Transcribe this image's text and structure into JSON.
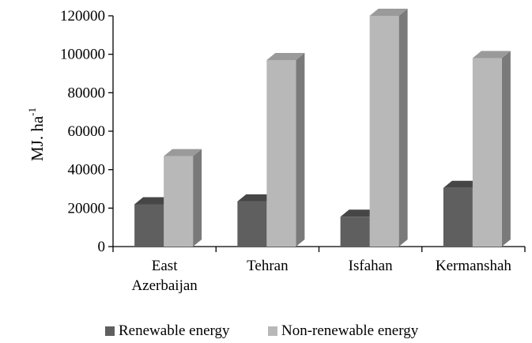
{
  "chart_data": {
    "type": "bar",
    "title": "",
    "xlabel": "",
    "ylabel": "MJ. ha",
    "ylabel_superscript": "-1",
    "categories": [
      [
        "East",
        "Azerbaijan"
      ],
      [
        "Tehran"
      ],
      [
        "Isfahan"
      ],
      [
        "Kermanshah"
      ]
    ],
    "series": [
      {
        "name": "Renewable energy",
        "values": [
          22000,
          23500,
          15500,
          30500
        ]
      },
      {
        "name": "Non-renewable energy",
        "values": [
          47000,
          97000,
          120000,
          98000
        ]
      }
    ],
    "ylim": [
      0,
      120000
    ],
    "yticks": [
      "0",
      "20000",
      "40000",
      "60000",
      "80000",
      "100000",
      "120000"
    ],
    "grid": false,
    "legend_position": "bottom",
    "colors": {
      "series": [
        {
          "front": "#5f5f5f",
          "top": "#464646",
          "side": "#3a3a3a"
        },
        {
          "front": "#b8b8b8",
          "top": "#9a9a9a",
          "side": "#7a7a7a"
        }
      ],
      "axis": "#000000"
    }
  }
}
